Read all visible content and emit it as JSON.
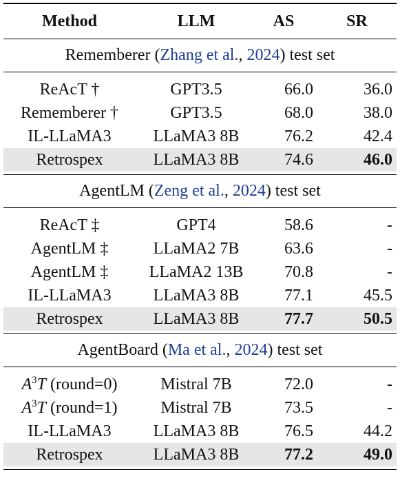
{
  "header": {
    "method": "Method",
    "llm": "LLM",
    "as": "AS",
    "sr": "SR"
  },
  "sections": [
    {
      "prefix": "Rememberer (",
      "cite_name": "Zhang et al.",
      "cite_sep": ", ",
      "cite_year": "2024",
      "suffix": ") test set",
      "rows": [
        {
          "method": "ReAcT †",
          "llm": "GPT3.5",
          "as": "66.0",
          "sr": "36.0"
        },
        {
          "method": "Rememberer †",
          "llm": "GPT3.5",
          "as": "68.0",
          "sr": "38.0"
        },
        {
          "method": "IL-LLaMA3",
          "llm": "LLaMA3 8B",
          "as": "76.2",
          "sr": "42.4"
        },
        {
          "method": "Retrospex",
          "llm": "LLaMA3 8B",
          "as": "74.6",
          "sr": "46.0"
        }
      ]
    },
    {
      "prefix": "AgentLM (",
      "cite_name": "Zeng et al.",
      "cite_sep": ", ",
      "cite_year": "2024",
      "suffix": ") test set",
      "rows": [
        {
          "method": "ReAcT ‡",
          "llm": "GPT4",
          "as": "58.6",
          "sr": "-"
        },
        {
          "method": "AgentLM ‡",
          "llm": "LLaMA2 7B",
          "as": "63.6",
          "sr": "-"
        },
        {
          "method": "AgentLM ‡",
          "llm": "LLaMA2 13B",
          "as": "70.8",
          "sr": "-"
        },
        {
          "method": "IL-LLaMA3",
          "llm": "LLaMA3 8B",
          "as": "77.1",
          "sr": "45.5"
        },
        {
          "method": "Retrospex",
          "llm": "LLaMA3 8B",
          "as": "77.7",
          "sr": "50.5"
        }
      ]
    },
    {
      "prefix": "AgentBoard (",
      "cite_name": "Ma et al.",
      "cite_sep": ", ",
      "cite_year": "2024",
      "suffix": ") test set",
      "rows": [
        {
          "method_base": "A",
          "method_sup": "3",
          "method_var": "T",
          "method_rest": " (round=0)",
          "llm": "Mistral 7B",
          "as": "72.0",
          "sr": "-"
        },
        {
          "method_base": "A",
          "method_sup": "3",
          "method_var": "T",
          "method_rest": " (round=1)",
          "llm": "Mistral 7B",
          "as": "73.5",
          "sr": "-"
        },
        {
          "method": "IL-LLaMA3",
          "llm": "LLaMA3 8B",
          "as": "76.5",
          "sr": "44.2"
        },
        {
          "method": "Retrospex",
          "llm": "LLaMA3 8B",
          "as": "77.2",
          "sr": "49.0"
        }
      ]
    }
  ]
}
